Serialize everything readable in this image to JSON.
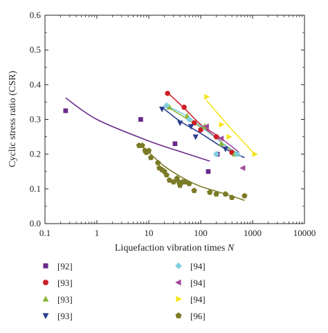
{
  "chart_data": {
    "type": "scatter",
    "title": "",
    "xlabel": "Liquefaction vibration times",
    "xlabel_var": "N",
    "ylabel": "Cyclic stress ratio (CSR)",
    "x_scale": "log",
    "xlim": [
      0.1,
      10000
    ],
    "ylim": [
      0.0,
      0.6
    ],
    "x_ticks": [
      "0.1",
      "1",
      "10",
      "100",
      "1000",
      "10000"
    ],
    "y_ticks": [
      "0.0",
      "0.1",
      "0.2",
      "0.3",
      "0.4",
      "0.5",
      "0.6"
    ],
    "grid": false,
    "legend_position": "below-plot",
    "series": [
      {
        "name": "[92]",
        "color": "#6a2a8c",
        "marker": "square",
        "points": [
          [
            0.25,
            0.325
          ],
          [
            7,
            0.3
          ],
          [
            32,
            0.23
          ],
          [
            140,
            0.15
          ],
          [
            210,
            0.2
          ]
        ],
        "fit": [
          [
            0.25,
            0.362
          ],
          [
            1,
            0.3
          ],
          [
            10,
            0.238
          ],
          [
            50,
            0.203
          ],
          [
            150,
            0.18
          ]
        ]
      },
      {
        "name": "[93]",
        "color": "#cc2027",
        "marker": "circle",
        "points": [
          [
            23,
            0.375
          ],
          [
            48,
            0.335
          ],
          [
            75,
            0.29
          ],
          [
            100,
            0.27
          ],
          [
            200,
            0.25
          ],
          [
            400,
            0.205
          ]
        ],
        "fit": [
          [
            22,
            0.38
          ],
          [
            50,
            0.33
          ],
          [
            100,
            0.285
          ],
          [
            250,
            0.235
          ],
          [
            500,
            0.195
          ]
        ]
      },
      {
        "name": "[93]",
        "color": "#8db53a",
        "marker": "triangle-up",
        "points": [
          [
            25,
            0.335
          ],
          [
            55,
            0.31
          ],
          [
            120,
            0.28
          ],
          [
            250,
            0.23
          ],
          [
            450,
            0.2
          ]
        ],
        "fit": [
          [
            22,
            0.338
          ],
          [
            50,
            0.305
          ],
          [
            120,
            0.27
          ],
          [
            300,
            0.225
          ],
          [
            550,
            0.195
          ]
        ]
      },
      {
        "name": "[93]",
        "color": "#2a3d8f",
        "marker": "triangle-down",
        "points": [
          [
            18,
            0.33
          ],
          [
            40,
            0.29
          ],
          [
            65,
            0.28
          ],
          [
            80,
            0.25
          ],
          [
            300,
            0.215
          ]
        ],
        "fit": [
          [
            18,
            0.335
          ],
          [
            40,
            0.295
          ],
          [
            100,
            0.26
          ],
          [
            300,
            0.215
          ],
          [
            700,
            0.19
          ]
        ]
      },
      {
        "name": "[94]",
        "color": "#7ecfe0",
        "marker": "diamond",
        "points": [
          [
            22,
            0.34
          ],
          [
            60,
            0.3
          ],
          [
            200,
            0.2
          ],
          [
            500,
            0.2
          ]
        ],
        "fit": [
          [
            22,
            0.34
          ],
          [
            60,
            0.305
          ],
          [
            200,
            0.245
          ],
          [
            600,
            0.195
          ]
        ]
      },
      {
        "name": "[94]",
        "color": "#a2479a",
        "marker": "triangle-left",
        "points": [
          [
            130,
            0.28
          ],
          [
            250,
            0.245
          ],
          [
            650,
            0.16
          ]
        ],
        "fit": [
          [
            100,
            0.285
          ],
          [
            250,
            0.245
          ],
          [
            550,
            0.205
          ]
        ]
      },
      {
        "name": "[94]",
        "color": "#f5e51b",
        "marker": "triangle-right",
        "points": [
          [
            130,
            0.365
          ],
          [
            250,
            0.285
          ],
          [
            350,
            0.25
          ],
          [
            1100,
            0.2
          ]
        ],
        "fit": [
          [
            130,
            0.355
          ],
          [
            250,
            0.305
          ],
          [
            500,
            0.255
          ],
          [
            1100,
            0.2
          ]
        ]
      },
      {
        "name": "[96]",
        "color": "#7b7a26",
        "marker": "pentagon",
        "points": [
          [
            6.5,
            0.225
          ],
          [
            7.5,
            0.225
          ],
          [
            8.5,
            0.21
          ],
          [
            10,
            0.21
          ],
          [
            9,
            0.205
          ],
          [
            11,
            0.19
          ],
          [
            15,
            0.175
          ],
          [
            16,
            0.16
          ],
          [
            18,
            0.155
          ],
          [
            20,
            0.15
          ],
          [
            22,
            0.14
          ],
          [
            25,
            0.125
          ],
          [
            30,
            0.12
          ],
          [
            35,
            0.13
          ],
          [
            38,
            0.12
          ],
          [
            40,
            0.11
          ],
          [
            45,
            0.12
          ],
          [
            50,
            0.12
          ],
          [
            60,
            0.115
          ],
          [
            75,
            0.095
          ],
          [
            150,
            0.09
          ],
          [
            200,
            0.085
          ],
          [
            300,
            0.085
          ],
          [
            400,
            0.075
          ],
          [
            700,
            0.08
          ]
        ],
        "fit": [
          [
            6.5,
            0.228
          ],
          [
            10,
            0.205
          ],
          [
            20,
            0.165
          ],
          [
            50,
            0.128
          ],
          [
            100,
            0.107
          ],
          [
            300,
            0.085
          ],
          [
            700,
            0.067
          ]
        ]
      }
    ]
  }
}
